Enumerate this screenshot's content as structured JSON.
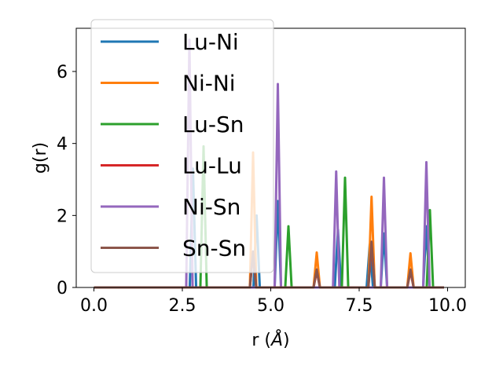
{
  "chart_data": {
    "type": "line",
    "title": "",
    "xlabel": "r (",
    "xlabel_unit": "Å",
    "xlabel_close": ")",
    "ylabel": "g(r)",
    "xlim": [
      -0.5,
      10.5
    ],
    "ylim": [
      0,
      7.2
    ],
    "x_ticks": [
      0.0,
      2.5,
      5.0,
      7.5,
      10.0
    ],
    "x_tick_labels": [
      "0.0",
      "2.5",
      "5.0",
      "7.5",
      "10.0"
    ],
    "y_ticks": [
      0,
      2,
      4,
      6
    ],
    "y_tick_labels": [
      "0",
      "2",
      "4",
      "6"
    ],
    "grid": false,
    "legend_position": "upper-left",
    "x_range": [
      0,
      9.9
    ],
    "peak_half_width": 0.09,
    "series": [
      {
        "name": "Lu-Ni",
        "color": "#1f77b4",
        "peaks": [
          [
            2.8,
            3.3
          ],
          [
            4.6,
            2.0
          ],
          [
            5.2,
            2.4
          ],
          [
            6.9,
            1.6
          ],
          [
            7.8,
            1.2
          ],
          [
            8.2,
            1.5
          ],
          [
            9.4,
            1.7
          ]
        ]
      },
      {
        "name": "Ni-Ni",
        "color": "#ff7f0e",
        "peaks": [
          [
            4.5,
            3.75
          ],
          [
            6.3,
            0.97
          ],
          [
            7.85,
            2.52
          ],
          [
            8.95,
            0.95
          ]
        ]
      },
      {
        "name": "Lu-Sn",
        "color": "#2ca02c",
        "peaks": [
          [
            3.1,
            3.92
          ],
          [
            5.5,
            1.7
          ],
          [
            7.1,
            3.05
          ],
          [
            9.5,
            2.15
          ]
        ]
      },
      {
        "name": "Lu-Lu",
        "color": "#d62728",
        "peaks": [
          [
            4.5,
            0.95
          ],
          [
            6.3,
            0.45
          ],
          [
            7.85,
            1.2
          ],
          [
            8.95,
            0.45
          ]
        ]
      },
      {
        "name": "Ni-Sn",
        "color": "#9467bd",
        "peaks": [
          [
            2.7,
            6.88
          ],
          [
            5.2,
            5.65
          ],
          [
            6.85,
            3.22
          ],
          [
            8.2,
            3.05
          ],
          [
            9.4,
            3.48
          ]
        ]
      },
      {
        "name": "Sn-Sn",
        "color": "#8c564b",
        "peaks": [
          [
            4.5,
            1.0
          ],
          [
            6.3,
            0.5
          ],
          [
            7.85,
            1.27
          ],
          [
            8.95,
            0.5
          ]
        ]
      }
    ]
  }
}
